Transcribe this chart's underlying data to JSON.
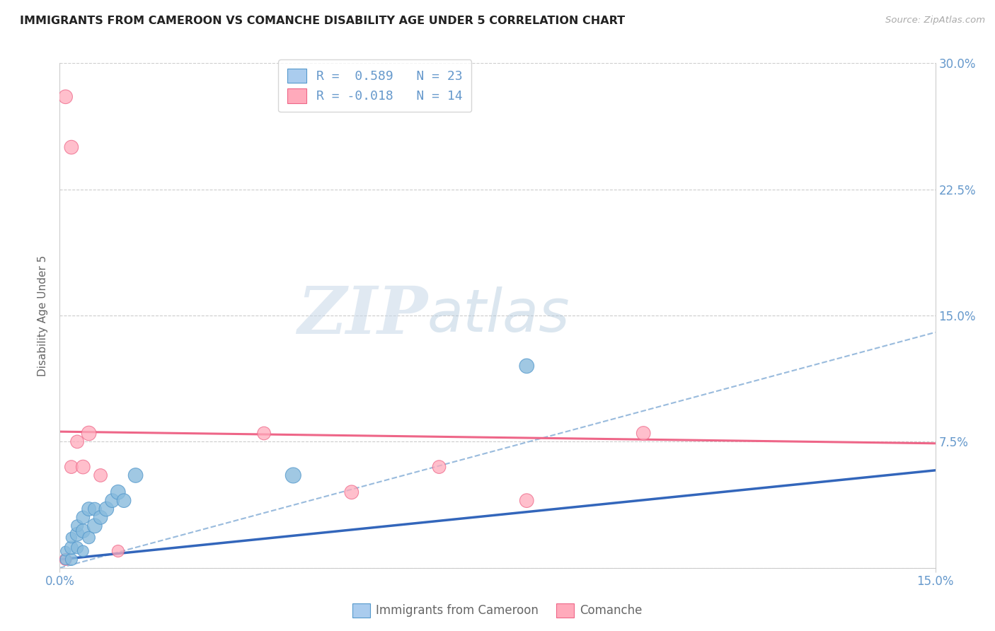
{
  "title": "IMMIGRANTS FROM CAMEROON VS COMANCHE DISABILITY AGE UNDER 5 CORRELATION CHART",
  "source": "Source: ZipAtlas.com",
  "ylabel": "Disability Age Under 5",
  "xlim": [
    0.0,
    0.15
  ],
  "ylim": [
    0.0,
    0.3
  ],
  "yticks": [
    0.0,
    0.075,
    0.15,
    0.225,
    0.3
  ],
  "ytick_labels": [
    "",
    "7.5%",
    "15.0%",
    "22.5%",
    "30.0%"
  ],
  "legend_label1": "R =  0.589   N = 23",
  "legend_label2": "R = -0.018   N = 14",
  "watermark_zip": "ZIP",
  "watermark_atlas": "atlas",
  "background_color": "#ffffff",
  "grid_color": "#cccccc",
  "blue_scatter_x": [
    0.001,
    0.001,
    0.002,
    0.002,
    0.002,
    0.003,
    0.003,
    0.003,
    0.004,
    0.004,
    0.004,
    0.005,
    0.005,
    0.006,
    0.006,
    0.007,
    0.008,
    0.009,
    0.01,
    0.011,
    0.013,
    0.04,
    0.08
  ],
  "blue_scatter_y": [
    0.005,
    0.01,
    0.005,
    0.012,
    0.018,
    0.012,
    0.02,
    0.025,
    0.01,
    0.022,
    0.03,
    0.018,
    0.035,
    0.025,
    0.035,
    0.03,
    0.035,
    0.04,
    0.045,
    0.04,
    0.055,
    0.055,
    0.12
  ],
  "blue_scatter_sizes": [
    120,
    100,
    150,
    180,
    120,
    150,
    200,
    150,
    130,
    200,
    180,
    160,
    200,
    220,
    180,
    200,
    220,
    200,
    220,
    200,
    220,
    250,
    220
  ],
  "pink_scatter_x": [
    0.001,
    0.001,
    0.002,
    0.002,
    0.003,
    0.004,
    0.005,
    0.007,
    0.01,
    0.035,
    0.05,
    0.065,
    0.08,
    0.1
  ],
  "pink_scatter_y": [
    0.005,
    0.28,
    0.25,
    0.06,
    0.075,
    0.06,
    0.08,
    0.055,
    0.01,
    0.08,
    0.045,
    0.06,
    0.04,
    0.08
  ],
  "pink_scatter_sizes": [
    150,
    200,
    200,
    180,
    180,
    200,
    220,
    180,
    150,
    180,
    200,
    180,
    200,
    200
  ],
  "blue_line_x0": 0.0,
  "blue_line_x1": 0.15,
  "blue_line_y0": 0.005,
  "blue_line_y1": 0.058,
  "pink_line_x0": 0.0,
  "pink_line_x1": 0.15,
  "pink_line_y0": 0.081,
  "pink_line_y1": 0.074,
  "dash_line_x0": 0.0,
  "dash_line_x1": 0.15,
  "dash_line_y0": 0.0,
  "dash_line_y1": 0.14,
  "blue_fill_color": "#aaccee",
  "blue_scatter_color": "#88bbdd",
  "blue_scatter_edge": "#5599cc",
  "pink_fill_color": "#ffaabb",
  "pink_scatter_color": "#ffaabb",
  "pink_scatter_edge": "#ee6688",
  "blue_line_color": "#3366bb",
  "pink_line_color": "#ee6688",
  "dash_line_color": "#99bbdd",
  "title_color": "#222222",
  "right_tick_color": "#6699cc",
  "bottom_tick_color": "#6699cc"
}
